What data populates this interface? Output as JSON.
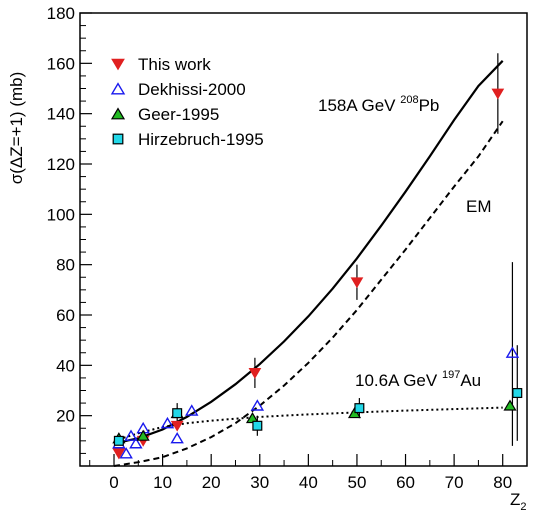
{
  "chart_data": {
    "type": "scatter",
    "ylabel": "σ(ΔZ=+1) (mb)",
    "xlabel_main": "Z",
    "xlabel_sub": "2",
    "xlim": [
      -7,
      85
    ],
    "ylim": [
      0,
      180
    ],
    "xticks": [
      0,
      10,
      20,
      30,
      40,
      50,
      60,
      70,
      80
    ],
    "yticks": [
      20,
      40,
      60,
      80,
      100,
      120,
      140,
      160,
      180
    ],
    "series": [
      {
        "name": "This work",
        "marker": "triangle-down",
        "color": "#e02020",
        "fill": "#e02020",
        "points": [
          {
            "x": 1,
            "y": 5,
            "err": 0
          },
          {
            "x": 6,
            "y": 10,
            "err": 0
          },
          {
            "x": 13,
            "y": 16,
            "err": 0
          },
          {
            "x": 29,
            "y": 37,
            "err": 6
          },
          {
            "x": 50,
            "y": 73,
            "err": 7
          },
          {
            "x": 79,
            "y": 148,
            "err": 16
          }
        ]
      },
      {
        "name": "Dekhissi-2000",
        "marker": "triangle-up-open",
        "color": "#1a1aee",
        "fill": "none",
        "points": [
          {
            "x": 1,
            "y": 9,
            "err": 0
          },
          {
            "x": 2.5,
            "y": 5,
            "err": 0
          },
          {
            "x": 3.5,
            "y": 12,
            "err": 0
          },
          {
            "x": 4.5,
            "y": 9,
            "err": 0
          },
          {
            "x": 6,
            "y": 15,
            "err": 0
          },
          {
            "x": 11,
            "y": 17,
            "err": 0
          },
          {
            "x": 13,
            "y": 11,
            "err": 0
          },
          {
            "x": 16,
            "y": 22,
            "err": 0
          },
          {
            "x": 29.5,
            "y": 24,
            "err": 0
          },
          {
            "x": 82,
            "y": 45,
            "err": 0
          }
        ]
      },
      {
        "name": "Geer-1995",
        "marker": "triangle-up-filled",
        "color": "#000000",
        "fill": "#22bb22",
        "points": [
          {
            "x": 1,
            "y": 11,
            "err": 0
          },
          {
            "x": 6,
            "y": 12,
            "err": 0
          },
          {
            "x": 13,
            "y": 21,
            "err": 0
          },
          {
            "x": 28.5,
            "y": 19,
            "err": 0
          },
          {
            "x": 49.5,
            "y": 21,
            "err": 0
          },
          {
            "x": 81.5,
            "y": 24,
            "err": 0
          }
        ]
      },
      {
        "name": "Hirzebruch-1995",
        "marker": "square",
        "color": "#000000",
        "fill": "#22d8e8",
        "points": [
          {
            "x": 1,
            "y": 10,
            "err": 0
          },
          {
            "x": 13,
            "y": 21,
            "err": 4
          },
          {
            "x": 29.5,
            "y": 16,
            "err": 4
          },
          {
            "x": 50.5,
            "y": 23,
            "err": 4
          },
          {
            "x": 83,
            "y": 29,
            "err": 19
          }
        ]
      }
    ],
    "error_only": [
      {
        "x": 82,
        "y": 45,
        "lo": 8,
        "hi": 81
      }
    ],
    "curves": [
      {
        "name": "158A GeV 208Pb",
        "style": "solid",
        "points": [
          [
            0,
            9
          ],
          [
            5,
            11
          ],
          [
            10,
            14.5
          ],
          [
            15,
            19.5
          ],
          [
            20,
            25.5
          ],
          [
            25,
            32.5
          ],
          [
            30,
            40.5
          ],
          [
            35,
            49.5
          ],
          [
            40,
            59.5
          ],
          [
            45,
            70.5
          ],
          [
            50,
            82.5
          ],
          [
            55,
            95.5
          ],
          [
            60,
            109
          ],
          [
            65,
            123
          ],
          [
            70,
            137.5
          ],
          [
            75,
            151
          ],
          [
            80,
            161
          ]
        ]
      },
      {
        "name": "EM",
        "style": "dashed",
        "points": [
          [
            0,
            0
          ],
          [
            5,
            1.5
          ],
          [
            10,
            3.5
          ],
          [
            15,
            7
          ],
          [
            20,
            11.5
          ],
          [
            25,
            17
          ],
          [
            30,
            24
          ],
          [
            35,
            32
          ],
          [
            40,
            41
          ],
          [
            45,
            51
          ],
          [
            50,
            62
          ],
          [
            55,
            74
          ],
          [
            60,
            86
          ],
          [
            65,
            98.5
          ],
          [
            70,
            111
          ],
          [
            75,
            123
          ],
          [
            80,
            137
          ]
        ]
      },
      {
        "name": "10.6A GeV 197Au",
        "style": "dotted",
        "points": [
          [
            0,
            10
          ],
          [
            5,
            13
          ],
          [
            10,
            15.5
          ],
          [
            15,
            17
          ],
          [
            20,
            18
          ],
          [
            25,
            18.8
          ],
          [
            30,
            19.5
          ],
          [
            40,
            20.5
          ],
          [
            50,
            21.3
          ],
          [
            60,
            22
          ],
          [
            70,
            22.6
          ],
          [
            80,
            23.2
          ]
        ]
      }
    ],
    "annotations": {
      "pb_prefix": "158A GeV ",
      "pb_sup": "208",
      "pb_elem": "Pb",
      "em": "EM",
      "au_prefix": "10.6A GeV ",
      "au_sup": "197",
      "au_elem": "Au"
    },
    "legend_position": "top-left"
  }
}
